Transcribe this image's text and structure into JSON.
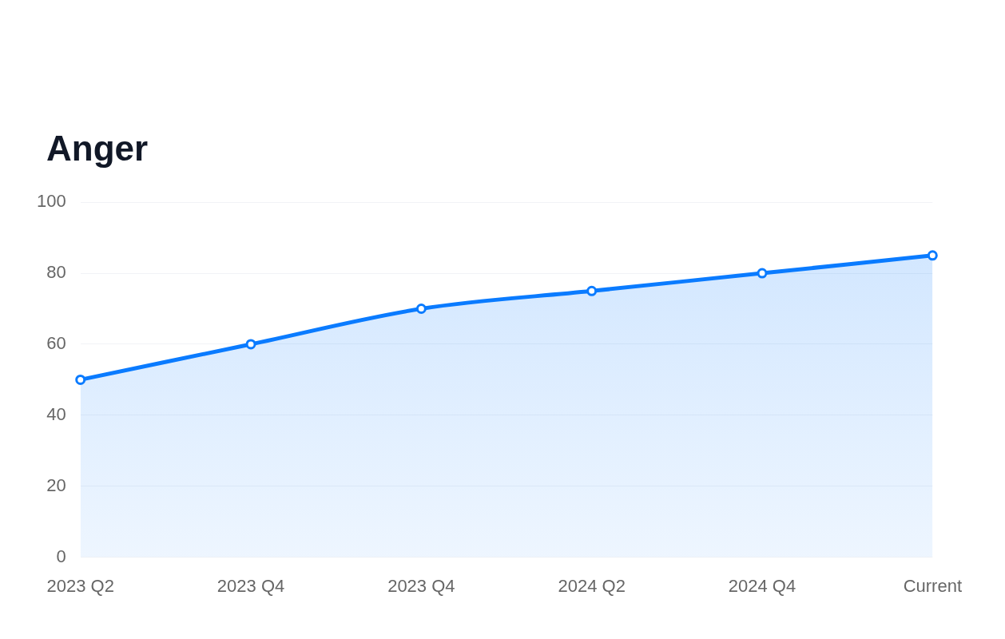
{
  "chart_data": {
    "type": "area",
    "title": "Anger",
    "categories": [
      "2023 Q2",
      "2023 Q4",
      "2023 Q4",
      "2024 Q2",
      "2024 Q4",
      "Current"
    ],
    "series": [
      {
        "color": "#0a7bff",
        "values": [
          50,
          60,
          70,
          75,
          80,
          85
        ]
      }
    ],
    "ylim": [
      0,
      100
    ],
    "yticks": [
      0,
      20,
      40,
      60,
      80,
      100
    ],
    "grid": "y",
    "legend": false,
    "marker": "circle",
    "line_style": "solid"
  }
}
